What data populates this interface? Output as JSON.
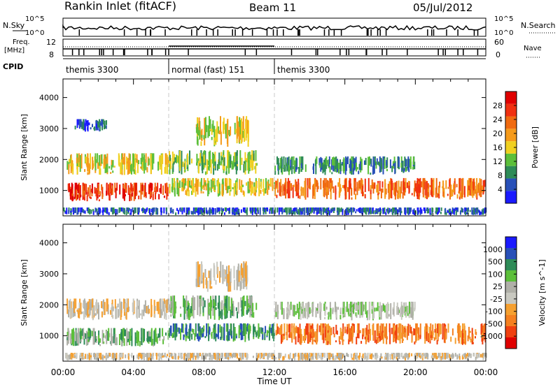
{
  "header": {
    "title": "Rankin Inlet (fitACF)",
    "beam": "Beam 11",
    "date": "05/Jul/2012"
  },
  "status": {
    "nsky_label": "N.Sky",
    "nsky_ticks": [
      "10^5",
      "10^0"
    ],
    "nsearch_label": "N.Search",
    "nsearch_ticks": [
      "10^5",
      "10^0"
    ],
    "freq_label": "Freq.",
    "freq_unit": "[MHz]",
    "freq_ticks": [
      "12",
      "8"
    ],
    "nave_label": "Nave",
    "nave_ticks": [
      "60",
      "0"
    ],
    "cpid_label": "CPID"
  },
  "cpid_segments": [
    {
      "label": "themis 3300",
      "start": 0,
      "end": 6
    },
    {
      "label": "normal (fast) 151",
      "start": 6,
      "end": 12
    },
    {
      "label": "themis 3300",
      "start": 12,
      "end": 24
    }
  ],
  "colors": {
    "power": [
      "#1a1aff",
      "#2850b8",
      "#2e8b57",
      "#5cbf3a",
      "#f0d020",
      "#f59a1a",
      "#f06a10",
      "#f03010",
      "#e00000"
    ],
    "velocity": [
      "#e00000",
      "#f04010",
      "#f58020",
      "#f5a030",
      "#c8c8c0",
      "#b0b0a8",
      "#5cbf3a",
      "#2e8b57",
      "#2850b8",
      "#1a1aff"
    ]
  },
  "chart_data": [
    {
      "type": "heatmap",
      "title": "Power",
      "xlabel": "",
      "ylabel": "Slant Range [km]",
      "xlim": [
        0,
        24
      ],
      "ylim": [
        180,
        4600
      ],
      "x_ticks": [
        "00:00",
        "04:00",
        "08:00",
        "12:00",
        "16:00",
        "20:00",
        "00:00"
      ],
      "y_ticks": [
        1000,
        2000,
        3000,
        4000
      ],
      "colorbar": {
        "label": "Power [dB]",
        "ticks": [
          "4",
          "8",
          "12",
          "16",
          "20",
          "24",
          "28"
        ]
      },
      "bands": [
        {
          "t0": 0.2,
          "t1": 6.0,
          "r0": 650,
          "r1": 1250,
          "level": 7
        },
        {
          "t0": 0.2,
          "t1": 6.0,
          "r0": 1500,
          "r1": 2200,
          "level": 4
        },
        {
          "t0": 0.5,
          "t1": 2.5,
          "r0": 2900,
          "r1": 3300,
          "level": 1
        },
        {
          "t0": 6.0,
          "t1": 12.0,
          "r0": 800,
          "r1": 1400,
          "level": 4
        },
        {
          "t0": 6.0,
          "t1": 11.0,
          "r0": 1500,
          "r1": 2300,
          "level": 3
        },
        {
          "t0": 7.5,
          "t1": 10.5,
          "r0": 2400,
          "r1": 3400,
          "level": 4
        },
        {
          "t0": 12.0,
          "t1": 24.0,
          "r0": 700,
          "r1": 1400,
          "level": 6
        },
        {
          "t0": 12.0,
          "t1": 20.0,
          "r0": 1500,
          "r1": 2100,
          "level": 2
        },
        {
          "t0": 0.0,
          "t1": 24.0,
          "r0": 200,
          "r1": 450,
          "level": 1
        }
      ]
    },
    {
      "type": "heatmap",
      "title": "Velocity",
      "xlabel": "Time UT",
      "ylabel": "Slant Range [km]",
      "xlim": [
        0,
        24
      ],
      "ylim": [
        180,
        4600
      ],
      "x_ticks": [
        "00:00",
        "04:00",
        "08:00",
        "12:00",
        "16:00",
        "20:00",
        "00:00"
      ],
      "y_ticks": [
        1000,
        2000,
        3000,
        4000
      ],
      "colorbar": {
        "label": "Velocity [m s^-1]",
        "ticks": [
          "1000",
          "500",
          "100",
          "25",
          "-25",
          "-100",
          "-500",
          "-1000"
        ]
      },
      "bands": [
        {
          "t0": 0.2,
          "t1": 6.0,
          "r0": 650,
          "r1": 1250,
          "level": 6
        },
        {
          "t0": 0.2,
          "t1": 6.0,
          "r0": 1500,
          "r1": 2200,
          "level": 4
        },
        {
          "t0": 6.0,
          "t1": 12.0,
          "r0": 800,
          "r1": 1400,
          "level": 7
        },
        {
          "t0": 6.0,
          "t1": 11.0,
          "r0": 1500,
          "r1": 2300,
          "level": 6
        },
        {
          "t0": 7.5,
          "t1": 10.5,
          "r0": 2400,
          "r1": 3400,
          "level": 4
        },
        {
          "t0": 12.0,
          "t1": 24.0,
          "r0": 700,
          "r1": 1400,
          "level": 2
        },
        {
          "t0": 12.0,
          "t1": 20.0,
          "r0": 1500,
          "r1": 2100,
          "level": 5
        },
        {
          "t0": 0.0,
          "t1": 24.0,
          "r0": 200,
          "r1": 450,
          "level": 4
        }
      ]
    }
  ]
}
